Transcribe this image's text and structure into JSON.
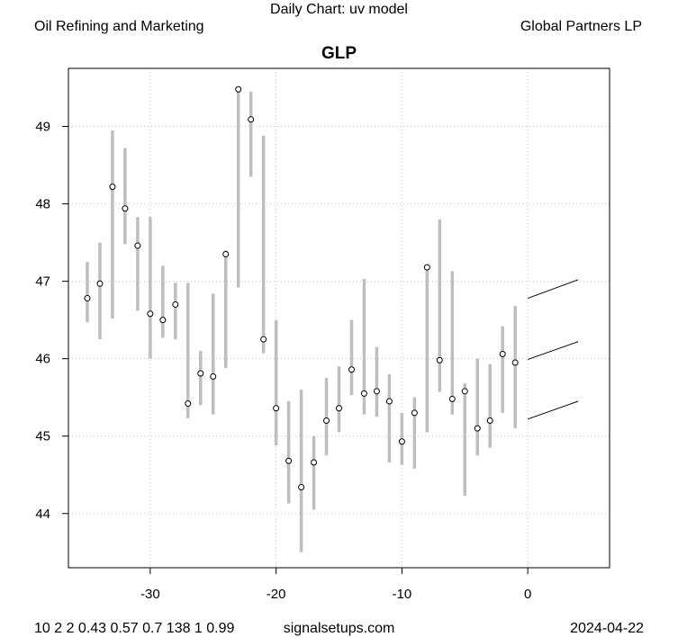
{
  "header": {
    "top_title": "Daily Chart: uv model",
    "left_label": "Oil Refining and Marketing",
    "right_label": "Global Partners LP"
  },
  "footer": {
    "params": "10 2 2 0.43 0.57 0.7 138 1 0.99",
    "site": "signalsetups.com",
    "date": "2024-04-22"
  },
  "chart_data": {
    "type": "range_points",
    "title": "GLP",
    "xlabel": "",
    "ylabel": "",
    "xlim": [
      -36.5,
      6.5
    ],
    "ylim": [
      43.3,
      49.75
    ],
    "x_ticks": [
      -30,
      -20,
      -10,
      0
    ],
    "y_ticks": [
      44,
      45,
      46,
      47,
      48,
      49
    ],
    "grid": true,
    "colors": {
      "range": "#bebebe",
      "point": "#ffffff",
      "forecast": "#000000",
      "grid": "#c8c8c8"
    },
    "bars": [
      {
        "x": -35,
        "low": 46.47,
        "high": 47.25,
        "close": 46.78
      },
      {
        "x": -34,
        "low": 46.25,
        "high": 47.5,
        "close": 46.97
      },
      {
        "x": -33,
        "low": 46.52,
        "high": 48.95,
        "close": 48.22
      },
      {
        "x": -32,
        "low": 47.48,
        "high": 48.72,
        "close": 47.94
      },
      {
        "x": -31,
        "low": 46.62,
        "high": 47.83,
        "close": 47.46
      },
      {
        "x": -30,
        "low": 46.0,
        "high": 47.83,
        "close": 46.58
      },
      {
        "x": -29,
        "low": 46.27,
        "high": 47.2,
        "close": 46.5
      },
      {
        "x": -28,
        "low": 46.25,
        "high": 46.98,
        "close": 46.7
      },
      {
        "x": -27,
        "low": 45.23,
        "high": 46.98,
        "close": 45.42
      },
      {
        "x": -26,
        "low": 45.4,
        "high": 46.1,
        "close": 45.81
      },
      {
        "x": -25,
        "low": 45.28,
        "high": 46.84,
        "close": 45.77
      },
      {
        "x": -24,
        "low": 45.88,
        "high": 47.4,
        "close": 47.35
      },
      {
        "x": -23,
        "low": 46.92,
        "high": 49.48,
        "close": 49.48
      },
      {
        "x": -22,
        "low": 48.35,
        "high": 49.45,
        "close": 49.09
      },
      {
        "x": -21,
        "low": 46.07,
        "high": 48.88,
        "close": 46.25
      },
      {
        "x": -20,
        "low": 44.88,
        "high": 46.5,
        "close": 45.36
      },
      {
        "x": -19,
        "low": 44.13,
        "high": 45.45,
        "close": 44.68
      },
      {
        "x": -18,
        "low": 43.5,
        "high": 45.6,
        "close": 44.34
      },
      {
        "x": -17,
        "low": 44.05,
        "high": 45.0,
        "close": 44.66
      },
      {
        "x": -16,
        "low": 44.75,
        "high": 45.75,
        "close": 45.2
      },
      {
        "x": -15,
        "low": 45.05,
        "high": 45.9,
        "close": 45.36
      },
      {
        "x": -14,
        "low": 45.53,
        "high": 46.5,
        "close": 45.86
      },
      {
        "x": -13,
        "low": 45.28,
        "high": 47.03,
        "close": 45.55
      },
      {
        "x": -12,
        "low": 45.25,
        "high": 46.15,
        "close": 45.58
      },
      {
        "x": -11,
        "low": 44.66,
        "high": 45.8,
        "close": 45.45
      },
      {
        "x": -10,
        "low": 44.63,
        "high": 45.3,
        "close": 44.93
      },
      {
        "x": -9,
        "low": 44.58,
        "high": 45.5,
        "close": 45.3
      },
      {
        "x": -8,
        "low": 45.05,
        "high": 47.22,
        "close": 47.18
      },
      {
        "x": -7,
        "low": 45.57,
        "high": 47.8,
        "close": 45.98
      },
      {
        "x": -6,
        "low": 45.28,
        "high": 47.13,
        "close": 45.48
      },
      {
        "x": -5,
        "low": 44.23,
        "high": 45.68,
        "close": 45.58
      },
      {
        "x": -4,
        "low": 44.75,
        "high": 46.0,
        "close": 45.1
      },
      {
        "x": -3,
        "low": 44.85,
        "high": 45.93,
        "close": 45.2
      },
      {
        "x": -2,
        "low": 45.3,
        "high": 46.42,
        "close": 46.06
      },
      {
        "x": -1,
        "low": 45.1,
        "high": 46.68,
        "close": 45.95
      }
    ],
    "forecast_lines": [
      {
        "x": [
          0,
          4
        ],
        "y": [
          46.78,
          47.02
        ]
      },
      {
        "x": [
          0,
          4
        ],
        "y": [
          45.99,
          46.22
        ]
      },
      {
        "x": [
          0,
          4
        ],
        "y": [
          45.22,
          45.45
        ]
      }
    ]
  }
}
